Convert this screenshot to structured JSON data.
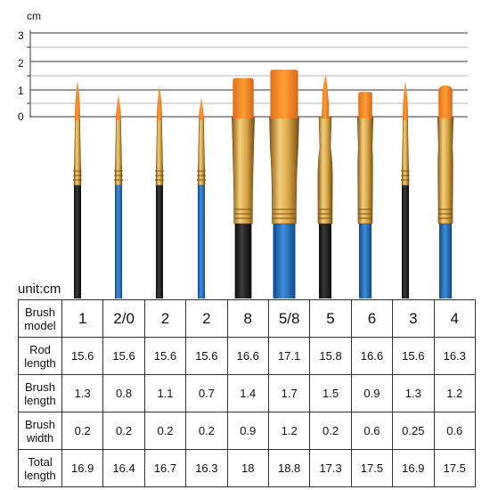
{
  "ruler": {
    "unit": "cm",
    "ticks": [
      "3",
      "2",
      "1",
      "0"
    ]
  },
  "unit_label": "unit:cm",
  "row_labels": {
    "model": [
      "Brush",
      "model"
    ],
    "rod": [
      "Rod",
      "length"
    ],
    "brush_length": [
      "Brush",
      "length"
    ],
    "brush_width": [
      "Brush",
      "width"
    ],
    "total": [
      "Total",
      "length"
    ]
  },
  "brushes": [
    {
      "model": "1",
      "rod": "15.6",
      "brush_length": "1.3",
      "brush_width": "0.2",
      "total": "16.9",
      "tip": "round",
      "handle": "black"
    },
    {
      "model": "2/0",
      "rod": "15.6",
      "brush_length": "0.8",
      "brush_width": "0.2",
      "total": "16.4",
      "tip": "round",
      "handle": "blue"
    },
    {
      "model": "2",
      "rod": "15.6",
      "brush_length": "1.1",
      "brush_width": "0.2",
      "total": "16.7",
      "tip": "round",
      "handle": "black"
    },
    {
      "model": "2",
      "rod": "15.6",
      "brush_length": "0.7",
      "brush_width": "0.2",
      "total": "16.3",
      "tip": "round",
      "handle": "blue"
    },
    {
      "model": "8",
      "rod": "16.6",
      "brush_length": "1.4",
      "brush_width": "0.9",
      "total": "18",
      "tip": "flat",
      "handle": "black"
    },
    {
      "model": "5/8",
      "rod": "17.1",
      "brush_length": "1.7",
      "brush_width": "1.2",
      "total": "18.8",
      "tip": "flat",
      "handle": "blue"
    },
    {
      "model": "5",
      "rod": "15.8",
      "brush_length": "1.5",
      "brush_width": "0.2",
      "total": "17.3",
      "tip": "angled",
      "handle": "black"
    },
    {
      "model": "6",
      "rod": "16.6",
      "brush_length": "0.9",
      "brush_width": "0.6",
      "total": "17.5",
      "tip": "flat",
      "handle": "blue"
    },
    {
      "model": "3",
      "rod": "15.6",
      "brush_length": "1.3",
      "brush_width": "0.25",
      "total": "16.9",
      "tip": "round",
      "handle": "black"
    },
    {
      "model": "4",
      "rod": "16.3",
      "brush_length": "1.2",
      "brush_width": "0.6",
      "total": "17.5",
      "tip": "filbert",
      "handle": "blue"
    }
  ],
  "colors": {
    "bristle": "#f08a1e",
    "ferrule": "#c8912e",
    "handle_black": "#1c1c1c",
    "handle_blue": "#1f6fc4",
    "ruler_line": "#333333"
  }
}
